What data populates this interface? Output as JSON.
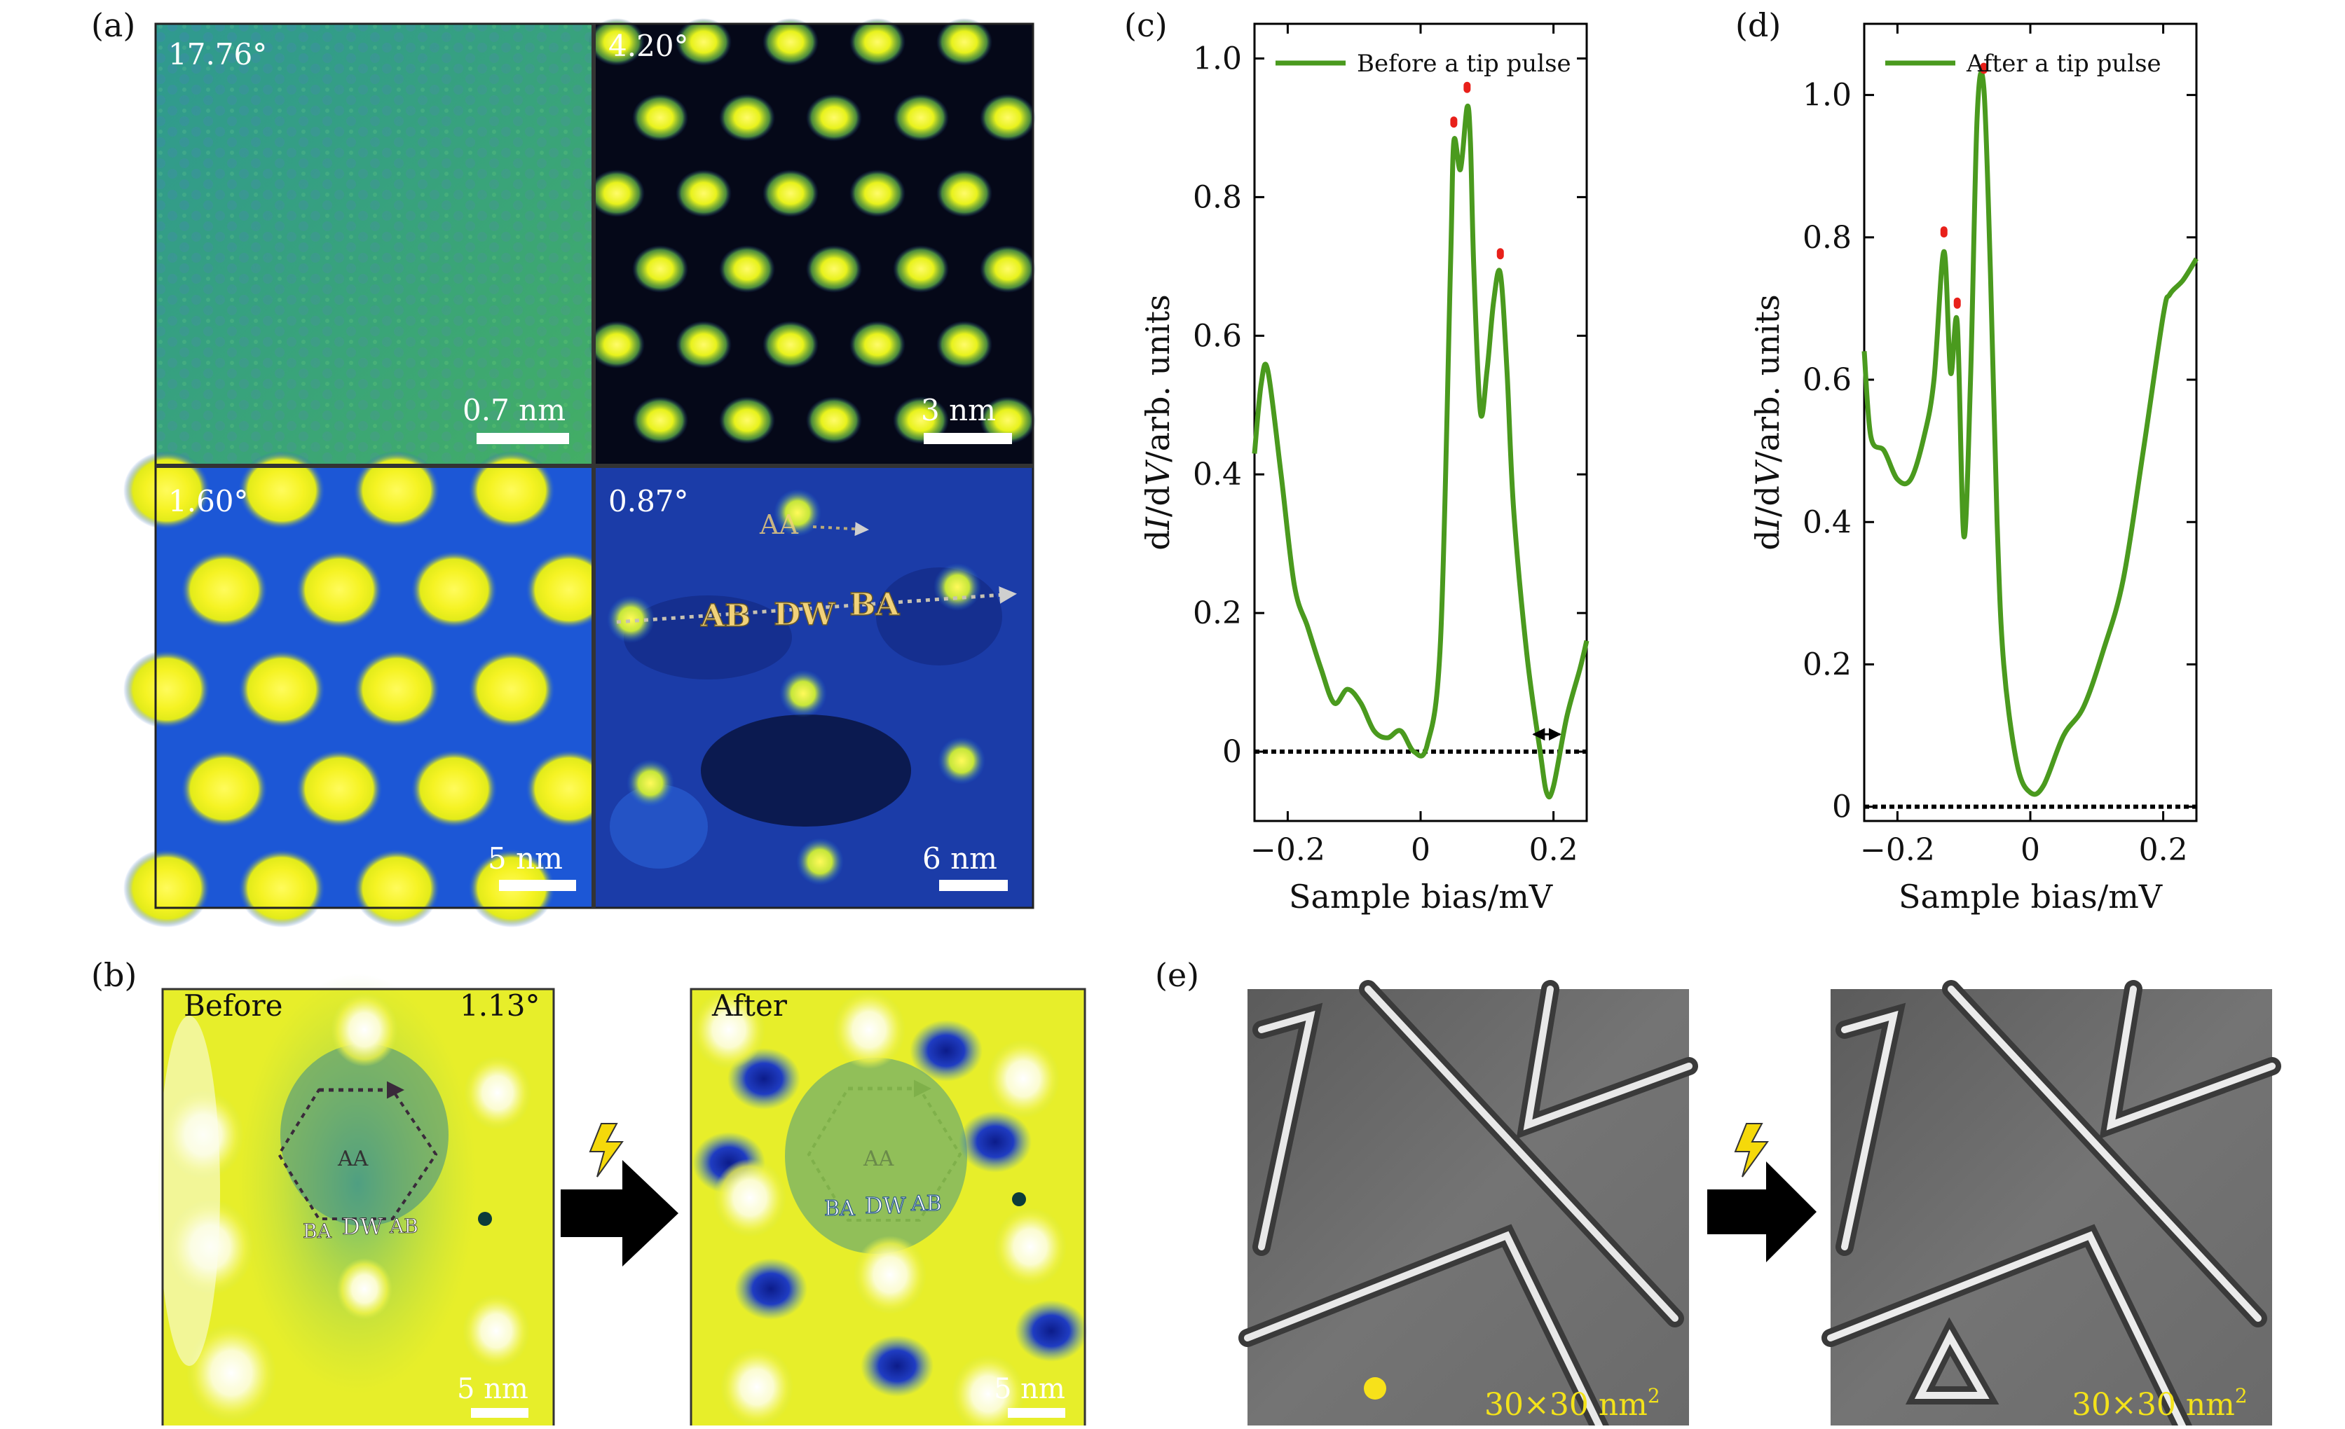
{
  "figure": {
    "panel_labels": {
      "a": "(a)",
      "b": "(b)",
      "c": "(c)",
      "d": "(d)",
      "e": "(e)"
    },
    "panel_a": {
      "angles": [
        "17.76°",
        "4.20°",
        "1.60°",
        "0.87°"
      ],
      "scale_bars": [
        "0.7 nm",
        "3 nm",
        "5 nm",
        "6 nm"
      ],
      "labels": {
        "aa": "AA",
        "ab": "AB",
        "dw": "DW",
        "ba": "BA"
      }
    },
    "panel_b": {
      "before_title": "Before",
      "after_title": "After",
      "angle": "1.13°",
      "labels": {
        "aa": "AA",
        "ba": "BA",
        "dw": "DW",
        "ab": "AB"
      },
      "scale_bar": "5 nm"
    },
    "panel_e": {
      "scale_text": "30×30 nm",
      "scale_exp": "2"
    },
    "colors": {
      "curve": "#4a9a1e",
      "peak": "#e8201a",
      "label_gold": "#f2d27a",
      "lightning": "#f5d90a"
    }
  },
  "chart_data": [
    {
      "type": "line",
      "panel": "c",
      "legend": "Before a tip pulse",
      "xlabel_main": "Sample bias/mV",
      "ylabel_parts": [
        "d",
        "I",
        "/d",
        "V",
        "/arb. units"
      ],
      "xlim": [
        -0.25,
        0.25
      ],
      "ylim": [
        -0.1,
        1.05
      ],
      "xticks": [
        -0.2,
        0,
        0.2
      ],
      "xtick_labels": [
        "−0.2",
        "0",
        "0.2"
      ],
      "yticks": [
        0,
        0.2,
        0.4,
        0.6,
        0.8,
        1.0
      ],
      "ytick_labels": [
        "0",
        "0.2",
        "0.4",
        "0.6",
        "0.8",
        "1.0"
      ],
      "x": [
        -0.25,
        -0.24,
        -0.23,
        -0.21,
        -0.19,
        -0.17,
        -0.15,
        -0.13,
        -0.11,
        -0.09,
        -0.07,
        -0.05,
        -0.03,
        -0.01,
        0.01,
        0.03,
        0.045,
        0.05,
        0.06,
        0.07,
        0.075,
        0.08,
        0.09,
        0.1,
        0.11,
        0.12,
        0.13,
        0.14,
        0.16,
        0.18,
        0.19,
        0.2,
        0.22,
        0.24,
        0.25
      ],
      "y": [
        0.43,
        0.53,
        0.55,
        0.4,
        0.24,
        0.18,
        0.12,
        0.07,
        0.09,
        0.07,
        0.03,
        0.02,
        0.03,
        0.0,
        0.01,
        0.16,
        0.7,
        0.88,
        0.84,
        0.93,
        0.88,
        0.7,
        0.49,
        0.55,
        0.65,
        0.69,
        0.55,
        0.35,
        0.14,
        0.0,
        -0.06,
        -0.05,
        0.05,
        0.12,
        0.16
      ],
      "peaks_x": [
        0.05,
        0.07,
        0.12
      ],
      "peaks_y": [
        0.88,
        0.93,
        0.69
      ],
      "zero_line": 0,
      "gap_x": [
        0.17,
        0.21
      ],
      "gap_y": 0.025
    },
    {
      "type": "line",
      "panel": "d",
      "legend": "After a tip pulse",
      "xlabel_main": "Sample bias/mV",
      "ylabel_parts": [
        "d",
        "I",
        "/d",
        "V",
        "/arb. units"
      ],
      "xlim": [
        -0.25,
        0.25
      ],
      "ylim": [
        -0.02,
        1.1
      ],
      "xticks": [
        -0.2,
        0,
        0.2
      ],
      "xtick_labels": [
        "−0.2",
        "0",
        "0.2"
      ],
      "yticks": [
        0,
        0.2,
        0.4,
        0.6,
        0.8,
        1.0
      ],
      "ytick_labels": [
        "0",
        "0.2",
        "0.4",
        "0.6",
        "0.8",
        "1.0"
      ],
      "x": [
        -0.25,
        -0.24,
        -0.22,
        -0.2,
        -0.18,
        -0.16,
        -0.145,
        -0.13,
        -0.12,
        -0.11,
        -0.1,
        -0.09,
        -0.08,
        -0.07,
        -0.06,
        -0.05,
        -0.04,
        -0.02,
        0.0,
        0.02,
        0.05,
        0.08,
        0.11,
        0.14,
        0.17,
        0.2,
        0.21,
        0.23,
        0.25
      ],
      "y": [
        0.64,
        0.52,
        0.5,
        0.46,
        0.46,
        0.52,
        0.6,
        0.78,
        0.61,
        0.68,
        0.38,
        0.6,
        0.97,
        1.01,
        0.75,
        0.4,
        0.2,
        0.06,
        0.02,
        0.03,
        0.1,
        0.14,
        0.22,
        0.32,
        0.5,
        0.69,
        0.72,
        0.74,
        0.77
      ],
      "peaks_x": [
        -0.13,
        -0.11,
        -0.07
      ],
      "peaks_y": [
        0.78,
        0.68,
        1.01
      ],
      "zero_line": 0
    }
  ]
}
